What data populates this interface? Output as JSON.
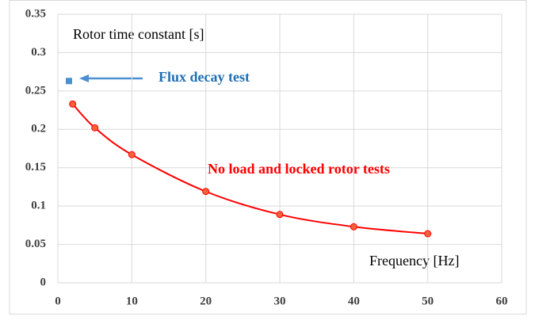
{
  "chart_data": {
    "type": "line",
    "y_label": "Rotor time constant [s]",
    "x_label": "Frequency [Hz]",
    "series": [
      {
        "name": "Flux decay test",
        "color": "#4a90d0",
        "marker": "square",
        "x": [
          1.5
        ],
        "values": [
          0.263
        ]
      },
      {
        "name": "No load and locked rotor tests",
        "color": "#ff0000",
        "marker": "circle",
        "smooth": true,
        "x": [
          2,
          5,
          10,
          20,
          30,
          40,
          50
        ],
        "values": [
          0.233,
          0.202,
          0.167,
          0.119,
          0.089,
          0.073,
          0.064
        ]
      }
    ],
    "xlim": [
      0,
      60
    ],
    "xticks": [
      0,
      10,
      20,
      30,
      40,
      50,
      60
    ],
    "ylim": [
      0,
      0.35
    ],
    "yticks": [
      0,
      0.05,
      0.1,
      0.15,
      0.2,
      0.25,
      0.3,
      0.35
    ],
    "grid": true
  }
}
